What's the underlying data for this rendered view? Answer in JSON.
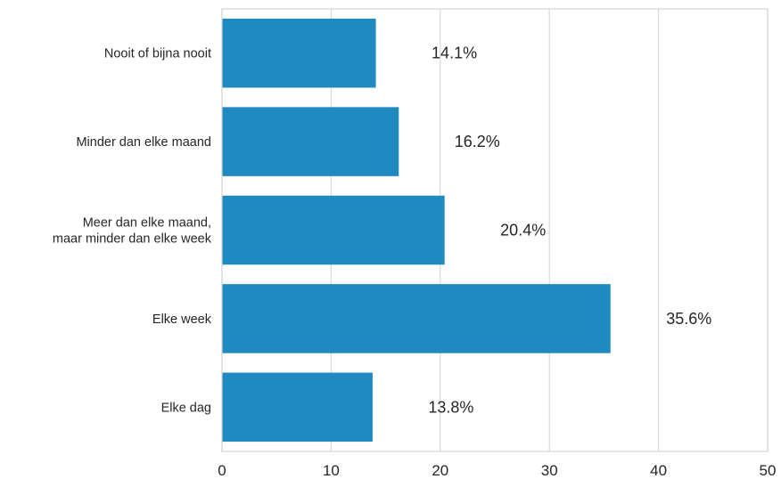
{
  "chart_data": {
    "type": "bar",
    "orientation": "horizontal",
    "categories": [
      [
        "Nooit of bijna nooit"
      ],
      [
        "Minder dan elke maand"
      ],
      [
        "Meer dan elke maand,",
        "maar minder dan elke week"
      ],
      [
        "Elke week"
      ],
      [
        "Elke dag"
      ]
    ],
    "values": [
      14.1,
      16.2,
      20.4,
      35.6,
      13.8
    ],
    "data_labels": [
      "14.1%",
      "16.2%",
      "20.4%",
      "35.6%",
      "13.8%"
    ],
    "xlim": [
      0,
      50
    ],
    "xticks": [
      0,
      10,
      20,
      30,
      40,
      50
    ],
    "title": "",
    "xlabel": "",
    "ylabel": "",
    "grid": true,
    "legend": "none",
    "bar_color": "#1f8ac0"
  }
}
